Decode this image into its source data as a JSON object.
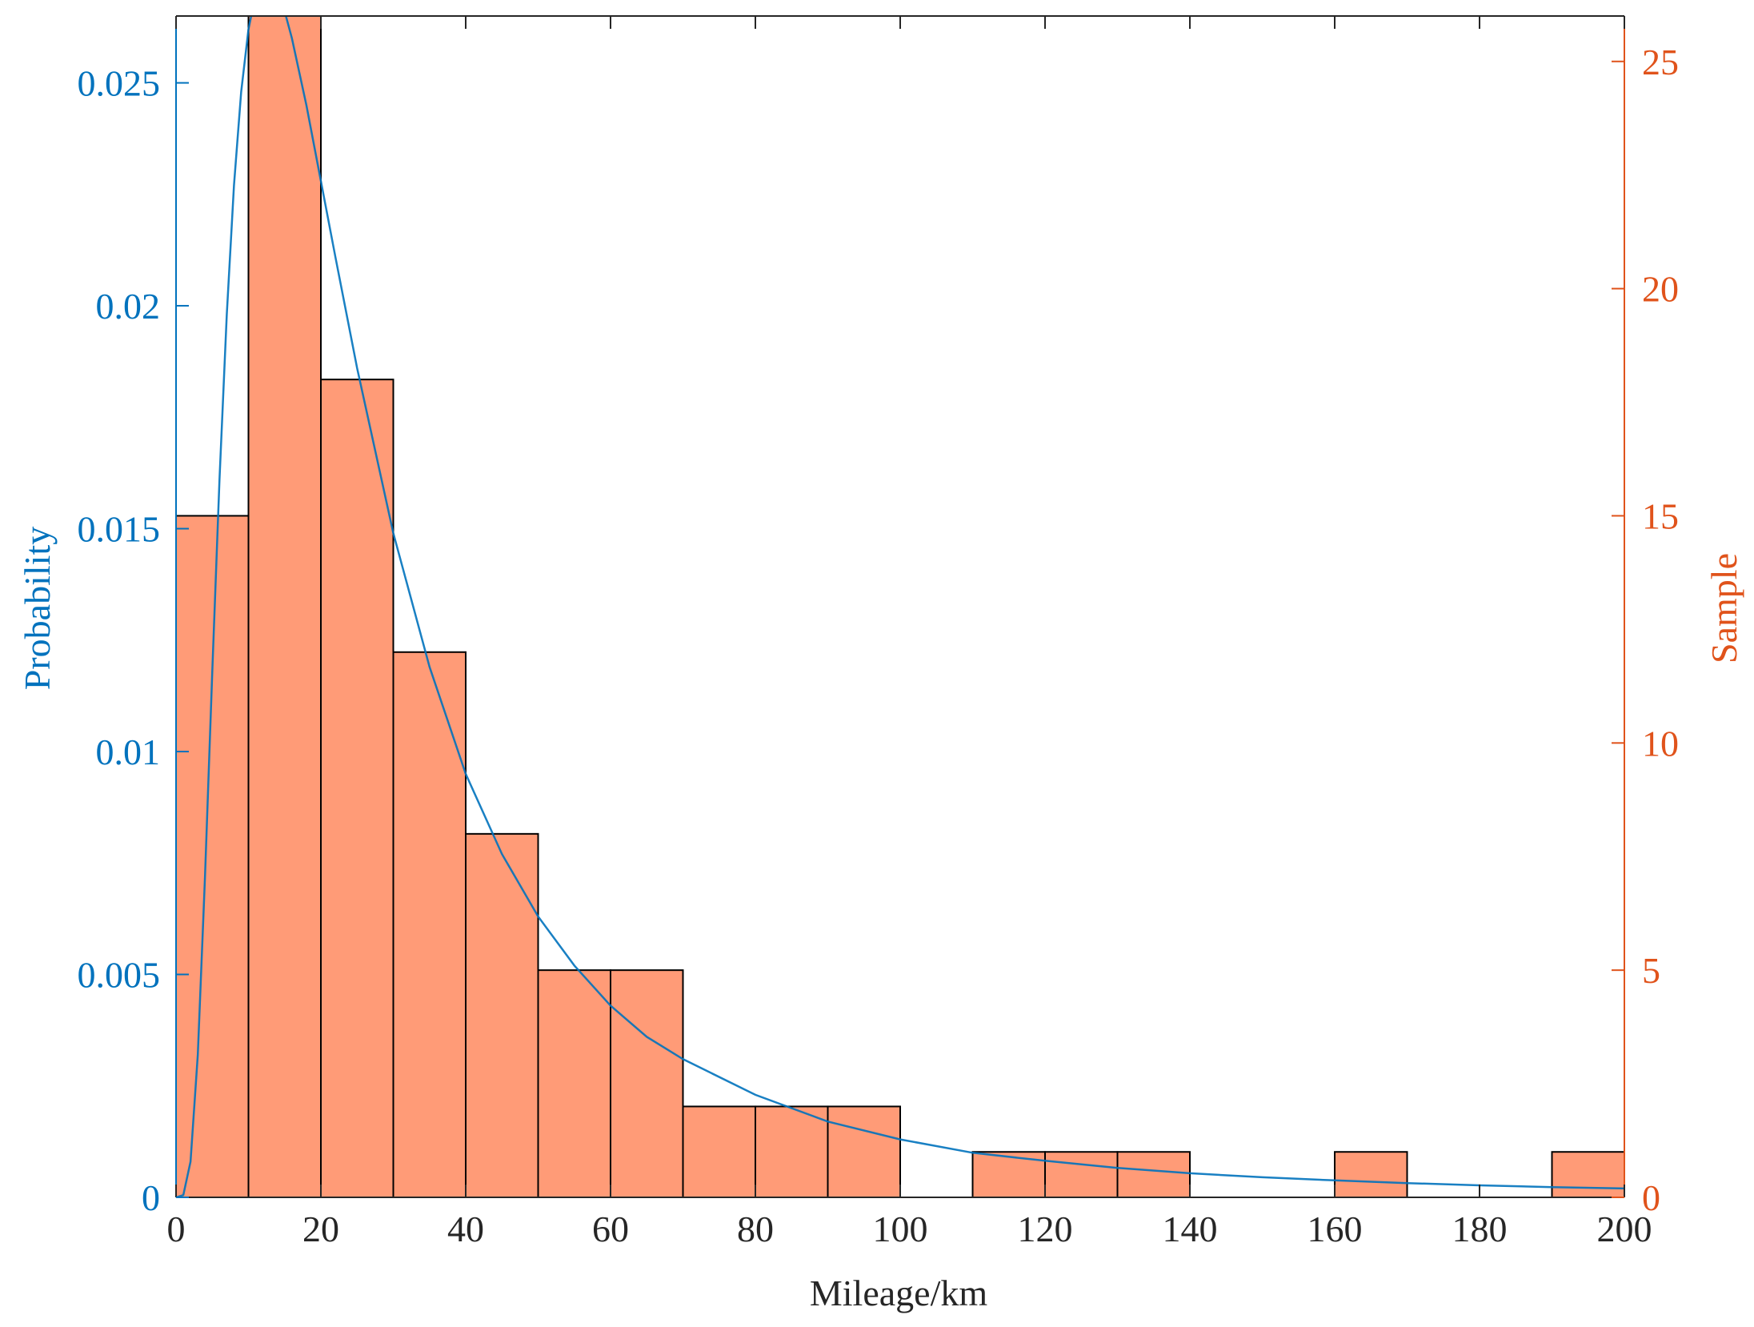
{
  "chart_data": {
    "type": "bar",
    "xlabel": "Mileage/km",
    "ylabel_left": "Probability",
    "ylabel_right": "Sample",
    "xlim": [
      0,
      200
    ],
    "ylim_left": [
      0,
      0.0265
    ],
    "ylim_right": [
      0,
      26
    ],
    "x_ticks": [
      0,
      20,
      40,
      60,
      80,
      100,
      120,
      140,
      160,
      180,
      200
    ],
    "y_left_ticks": [
      0,
      0.005,
      0.01,
      0.015,
      0.02,
      0.025
    ],
    "y_left_tick_labels": [
      "0",
      "0.005",
      "0.01",
      "0.015",
      "0.02",
      "0.025"
    ],
    "y_right_ticks": [
      0,
      5,
      10,
      15,
      20,
      25
    ],
    "grid": false,
    "histogram": {
      "bin_edges": [
        0,
        10,
        20,
        30,
        40,
        50,
        60,
        70,
        80,
        90,
        100,
        110,
        120,
        130,
        140,
        150,
        160,
        170,
        180,
        190,
        200
      ],
      "counts": [
        15,
        27,
        18,
        12,
        8,
        5,
        5,
        2,
        2,
        2,
        0,
        1,
        1,
        1,
        0,
        0,
        1,
        0,
        0,
        1
      ],
      "axis": "right"
    },
    "pdf_curve": {
      "axis": "left",
      "x": [
        0,
        1,
        2,
        3,
        4,
        5,
        6,
        7,
        8,
        9,
        10,
        11,
        12,
        13,
        14,
        15,
        16,
        18,
        20,
        22,
        25,
        30,
        35,
        40,
        45,
        50,
        55,
        60,
        65,
        70,
        80,
        90,
        100,
        110,
        120,
        130,
        140,
        150,
        160,
        170,
        180,
        190,
        200
      ],
      "y": [
        0.0,
        5e-05,
        0.0008,
        0.0032,
        0.0072,
        0.0118,
        0.0161,
        0.0198,
        0.0227,
        0.0248,
        0.0262,
        0.027,
        0.0273,
        0.0273,
        0.0271,
        0.0266,
        0.026,
        0.0245,
        0.0228,
        0.0211,
        0.0186,
        0.0149,
        0.0119,
        0.0095,
        0.0077,
        0.0063,
        0.0052,
        0.0043,
        0.0036,
        0.0031,
        0.0023,
        0.0017,
        0.0013,
        0.001,
        0.00082,
        0.00066,
        0.00054,
        0.00045,
        0.00038,
        0.00032,
        0.00027,
        0.00023,
        0.0002
      ]
    },
    "colors": {
      "bar_fill": "#FF9B77",
      "bar_edge": "#000000",
      "curve": "#0072BD",
      "left_axis": "#0072BD",
      "right_axis": "#E0531B",
      "frame": "#262626"
    }
  }
}
